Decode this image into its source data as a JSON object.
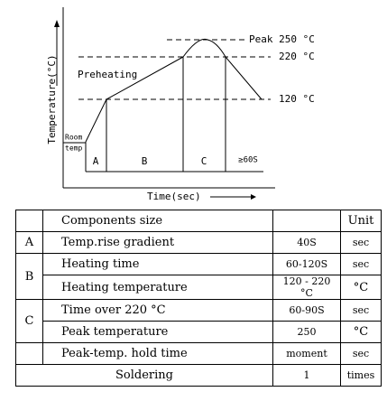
{
  "diagram": {
    "y_axis_label": "Temperature(°C)",
    "x_axis_label": "Time(sec)",
    "peak_label": "Peak 250 °C",
    "level_220_label": "220 °C",
    "level_120_label": "120 °C",
    "preheating_label": "Preheating",
    "room_label_line1": "Room",
    "room_label_line2": "temp",
    "zones": [
      "A",
      "B",
      "C",
      "≥60S"
    ]
  },
  "table": {
    "header": {
      "item": "Components size",
      "unit": "Unit"
    },
    "rows": [
      {
        "group": "A",
        "item": "Temp.rise gradient",
        "value": "40S",
        "unit": "sec"
      },
      {
        "group": "B",
        "item": "Heating time",
        "value": "60-120S",
        "unit": "sec"
      },
      {
        "item": "Heating temperature",
        "value": "120 - 220 °C",
        "unit": "°C"
      },
      {
        "group": "C",
        "item": "Time over 220 °C",
        "value": "60-90S",
        "unit": "sec"
      },
      {
        "item": "Peak temperature",
        "value": "250",
        "unit": "°C"
      },
      {
        "item": "Peak-temp. hold time",
        "value": "moment",
        "unit": "sec"
      }
    ],
    "footer": {
      "item": "Soldering",
      "value": "1",
      "unit": "times"
    }
  }
}
